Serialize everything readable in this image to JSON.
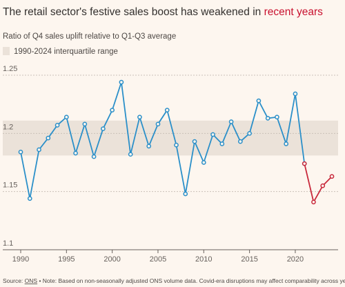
{
  "chart_data": {
    "type": "line",
    "title": "The retail sector's festive sales boost has weakened in ",
    "title_highlight": "recent years",
    "title_highlight_color": "#c8102e",
    "subtitle": "Ratio of Q4 sales uplift relative to Q1-Q3 average",
    "band": {
      "label": "1990-2024 interquartile range",
      "range": [
        1.181,
        1.211
      ],
      "color": "#ebe2d9"
    },
    "x": [
      1990,
      1991,
      1992,
      1993,
      1994,
      1995,
      1996,
      1997,
      1998,
      1999,
      2000,
      2001,
      2002,
      2003,
      2004,
      2005,
      2006,
      2007,
      2008,
      2009,
      2010,
      2011,
      2012,
      2013,
      2014,
      2015,
      2016,
      2017,
      2018,
      2019,
      2020,
      2021,
      2022,
      2023,
      2024
    ],
    "series": [
      {
        "color": "#2a8fc9",
        "values": [
          1.184,
          1.144,
          1.186,
          1.196,
          1.207,
          1.214,
          1.183,
          1.208,
          1.18,
          1.204,
          1.22,
          1.244,
          1.182,
          1.214,
          1.189,
          1.208,
          1.22,
          1.19,
          1.148,
          1.193,
          1.175,
          1.199,
          1.191,
          1.21,
          1.193,
          1.2,
          1.228,
          1.213,
          1.214,
          1.191,
          1.234,
          1.174,
          null,
          null,
          null
        ]
      },
      {
        "color": "#c8283b",
        "values": [
          null,
          null,
          null,
          null,
          null,
          null,
          null,
          null,
          null,
          null,
          null,
          null,
          null,
          null,
          null,
          null,
          null,
          null,
          null,
          null,
          null,
          null,
          null,
          null,
          null,
          null,
          null,
          null,
          null,
          null,
          null,
          1.174,
          1.141,
          1.155,
          1.163
        ]
      }
    ],
    "xlim": [
      1990,
      2024
    ],
    "xticks": [
      1990,
      1995,
      2000,
      2005,
      2010,
      2015,
      2020
    ],
    "ylim": [
      1.1,
      1.25
    ],
    "yticks": [
      {
        "value": 1.1,
        "label": "1.1"
      },
      1.15,
      {
        "value": 1.2,
        "label": "1.2"
      },
      1.25
    ],
    "grid": true,
    "source_prefix": "Source: ",
    "source": "ONS",
    "note": " • Note: Based on non-seasonally adjusted ONS volume data. Covid-era disruptions may affect comparability across years."
  }
}
